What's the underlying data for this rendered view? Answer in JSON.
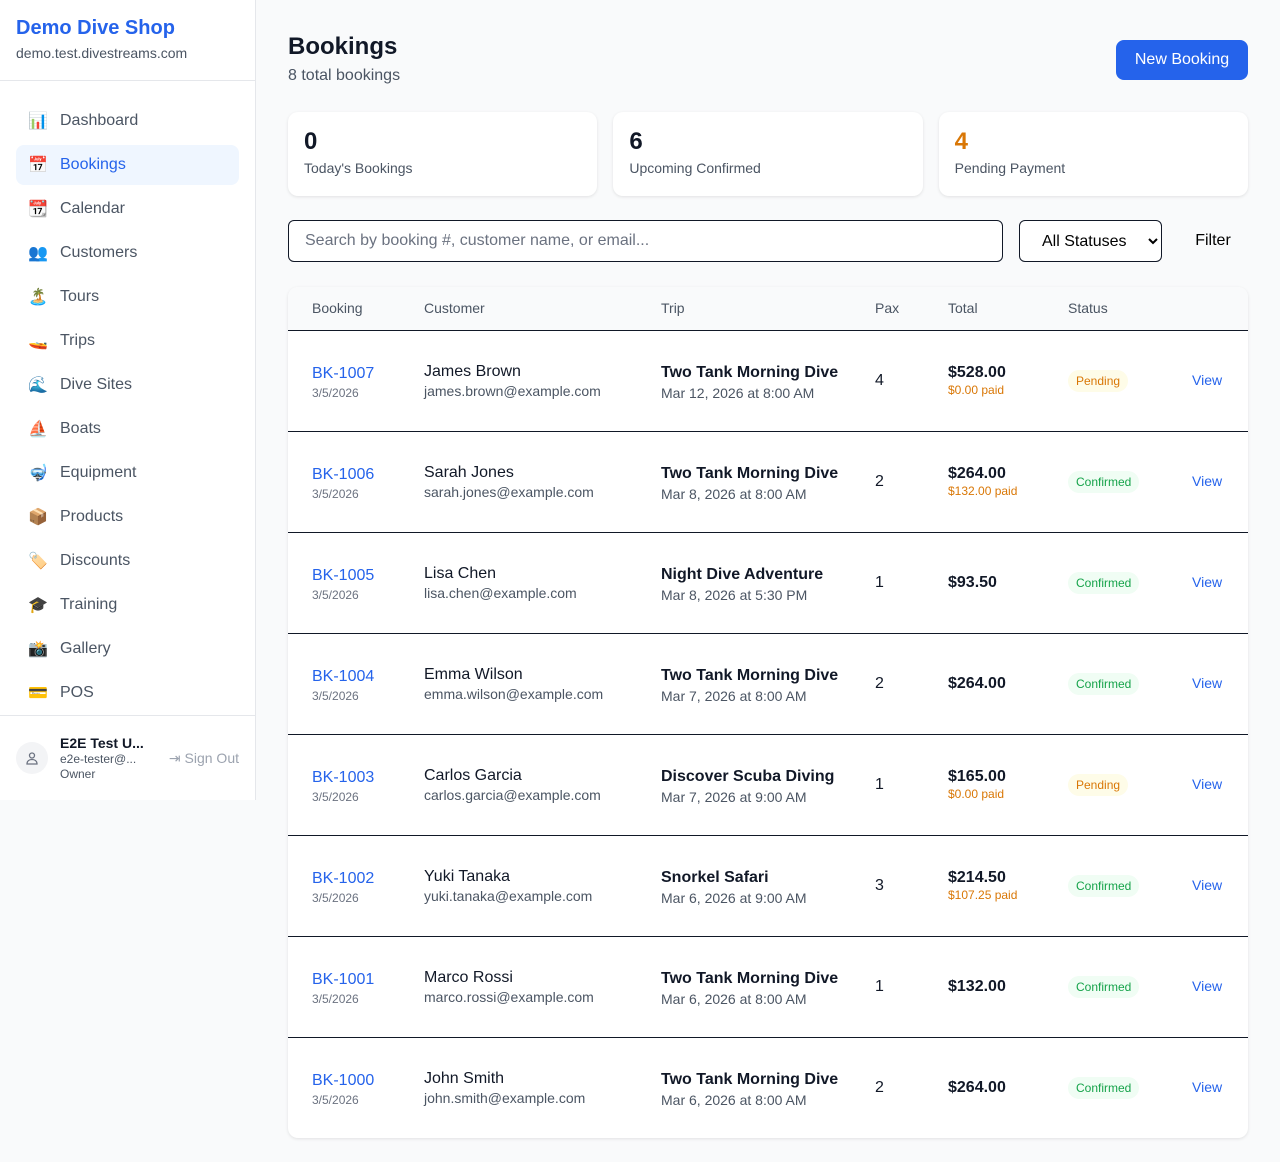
{
  "sidebar": {
    "brand": "Demo Dive Shop",
    "domain": "demo.test.divestreams.com",
    "items": [
      {
        "label": "Dashboard",
        "icon": "📊"
      },
      {
        "label": "Bookings",
        "icon": "📅",
        "active": true
      },
      {
        "label": "Calendar",
        "icon": "📆"
      },
      {
        "label": "Customers",
        "icon": "👥"
      },
      {
        "label": "Tours",
        "icon": "🏝️"
      },
      {
        "label": "Trips",
        "icon": "🚤"
      },
      {
        "label": "Dive Sites",
        "icon": "🌊"
      },
      {
        "label": "Boats",
        "icon": "⛵"
      },
      {
        "label": "Equipment",
        "icon": "🤿"
      },
      {
        "label": "Products",
        "icon": "📦"
      },
      {
        "label": "Discounts",
        "icon": "🏷️"
      },
      {
        "label": "Training",
        "icon": "🎓"
      },
      {
        "label": "Gallery",
        "icon": "📸"
      },
      {
        "label": "POS",
        "icon": "💳"
      }
    ],
    "user": {
      "name": "E2E Test U...",
      "email": "e2e-tester@...",
      "role": "Owner",
      "signout": "Sign Out"
    }
  },
  "header": {
    "title": "Bookings",
    "subtitle": "8 total bookings",
    "new_button": "New Booking"
  },
  "stats": [
    {
      "value": "0",
      "label": "Today's Bookings",
      "color": "#111827"
    },
    {
      "value": "6",
      "label": "Upcoming Confirmed",
      "color": "#111827"
    },
    {
      "value": "4",
      "label": "Pending Payment",
      "color": "#d97706"
    }
  ],
  "filters": {
    "search_placeholder": "Search by booking #, customer name, or email...",
    "status_selected": "All Statuses",
    "filter_button": "Filter"
  },
  "table": {
    "columns": [
      "Booking",
      "Customer",
      "Trip",
      "Pax",
      "Total",
      "Status",
      ""
    ],
    "rows": [
      {
        "id": "BK-1007",
        "created": "3/5/2026",
        "name": "James Brown",
        "email": "james.brown@example.com",
        "trip": "Two Tank Morning Dive",
        "date": "Mar 12, 2026 at 8:00 AM",
        "pax": "4",
        "total": "$528.00",
        "paid": "$0.00 paid",
        "status": "Pending",
        "action": "View"
      },
      {
        "id": "BK-1006",
        "created": "3/5/2026",
        "name": "Sarah Jones",
        "email": "sarah.jones@example.com",
        "trip": "Two Tank Morning Dive",
        "date": "Mar 8, 2026 at 8:00 AM",
        "pax": "2",
        "total": "$264.00",
        "paid": "$132.00 paid",
        "status": "Confirmed",
        "action": "View"
      },
      {
        "id": "BK-1005",
        "created": "3/5/2026",
        "name": "Lisa Chen",
        "email": "lisa.chen@example.com",
        "trip": "Night Dive Adventure",
        "date": "Mar 8, 2026 at 5:30 PM",
        "pax": "1",
        "total": "$93.50",
        "paid": null,
        "status": "Confirmed",
        "action": "View"
      },
      {
        "id": "BK-1004",
        "created": "3/5/2026",
        "name": "Emma Wilson",
        "email": "emma.wilson@example.com",
        "trip": "Two Tank Morning Dive",
        "date": "Mar 7, 2026 at 8:00 AM",
        "pax": "2",
        "total": "$264.00",
        "paid": null,
        "status": "Confirmed",
        "action": "View"
      },
      {
        "id": "BK-1003",
        "created": "3/5/2026",
        "name": "Carlos Garcia",
        "email": "carlos.garcia@example.com",
        "trip": "Discover Scuba Diving",
        "date": "Mar 7, 2026 at 9:00 AM",
        "pax": "1",
        "total": "$165.00",
        "paid": "$0.00 paid",
        "status": "Pending",
        "action": "View"
      },
      {
        "id": "BK-1002",
        "created": "3/5/2026",
        "name": "Yuki Tanaka",
        "email": "yuki.tanaka@example.com",
        "trip": "Snorkel Safari",
        "date": "Mar 6, 2026 at 9:00 AM",
        "pax": "3",
        "total": "$214.50",
        "paid": "$107.25 paid",
        "status": "Confirmed",
        "action": "View"
      },
      {
        "id": "BK-1001",
        "created": "3/5/2026",
        "name": "Marco Rossi",
        "email": "marco.rossi@example.com",
        "trip": "Two Tank Morning Dive",
        "date": "Mar 6, 2026 at 8:00 AM",
        "pax": "1",
        "total": "$132.00",
        "paid": null,
        "status": "Confirmed",
        "action": "View"
      },
      {
        "id": "BK-1000",
        "created": "3/5/2026",
        "name": "John Smith",
        "email": "john.smith@example.com",
        "trip": "Two Tank Morning Dive",
        "date": "Mar 6, 2026 at 8:00 AM",
        "pax": "2",
        "total": "$264.00",
        "paid": null,
        "status": "Confirmed",
        "action": "View"
      }
    ]
  }
}
